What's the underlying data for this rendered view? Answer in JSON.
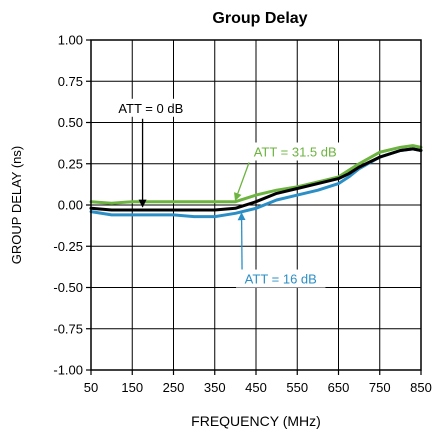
{
  "chart_data": {
    "type": "line",
    "title": "Group Delay",
    "xlabel": "FREQUENCY (MHz)",
    "ylabel": "GROUP DELAY (ns)",
    "xlim": [
      50,
      850
    ],
    "ylim": [
      -1.0,
      1.0
    ],
    "x_ticks": [
      50,
      150,
      250,
      350,
      450,
      550,
      650,
      750,
      850
    ],
    "y_ticks": [
      1.0,
      0.75,
      0.5,
      0.25,
      0.0,
      -0.25,
      -0.5,
      -0.75,
      -1.0
    ],
    "x_tick_labels": [
      "50",
      "150",
      "250",
      "350",
      "450",
      "550",
      "650",
      "750",
      "850"
    ],
    "y_tick_labels": [
      "1.00",
      "0.75",
      "0.50",
      "0.25",
      "0.00",
      "-0.25",
      "-0.50",
      "-0.75",
      "-1.00"
    ],
    "grid": true,
    "series": [
      {
        "name": "ATT = 0 dB",
        "color": "#000000",
        "x": [
          50,
          100,
          150,
          200,
          250,
          300,
          350,
          400,
          450,
          500,
          550,
          600,
          650,
          675,
          700,
          750,
          800,
          830,
          850
        ],
        "y": [
          -0.02,
          -0.03,
          -0.03,
          -0.03,
          -0.03,
          -0.03,
          -0.03,
          -0.02,
          0.02,
          0.07,
          0.1,
          0.13,
          0.16,
          0.19,
          0.23,
          0.29,
          0.33,
          0.34,
          0.33
        ]
      },
      {
        "name": "ATT = 31.5 dB",
        "color": "#6cb33f",
        "x": [
          50,
          100,
          150,
          200,
          250,
          300,
          350,
          400,
          450,
          500,
          550,
          600,
          650,
          675,
          700,
          750,
          800,
          830,
          850
        ],
        "y": [
          0.02,
          0.01,
          0.02,
          0.02,
          0.02,
          0.02,
          0.02,
          0.02,
          0.06,
          0.09,
          0.11,
          0.14,
          0.17,
          0.21,
          0.25,
          0.32,
          0.35,
          0.36,
          0.35
        ]
      },
      {
        "name": "ATT = 16 dB",
        "color": "#2b8fc6",
        "x": [
          50,
          100,
          150,
          200,
          250,
          300,
          350,
          400,
          450,
          500,
          550,
          600,
          650,
          675,
          700,
          750,
          800,
          830,
          850
        ],
        "y": [
          -0.04,
          -0.06,
          -0.06,
          -0.06,
          -0.06,
          -0.07,
          -0.07,
          -0.05,
          -0.02,
          0.03,
          0.06,
          0.09,
          0.13,
          0.17,
          0.22,
          0.29,
          0.33,
          0.34,
          0.33
        ]
      }
    ],
    "annotations": [
      {
        "text": "ATT = 0 dB",
        "color": "#000000",
        "label_x": 195,
        "label_y": 0.565,
        "arrow_to_x": 175,
        "arrow_to_y": -0.01
      },
      {
        "text": "ATT = 31.5 dB",
        "color": "#6cb33f",
        "label_x": 545,
        "label_y": 0.3,
        "arrow_to_x": 400,
        "arrow_to_y": 0.03
      },
      {
        "text": "ATT = 16 dB",
        "color": "#2b8fc6",
        "label_x": 510,
        "label_y": -0.47,
        "arrow_to_x": 415,
        "arrow_to_y": -0.05
      }
    ]
  }
}
